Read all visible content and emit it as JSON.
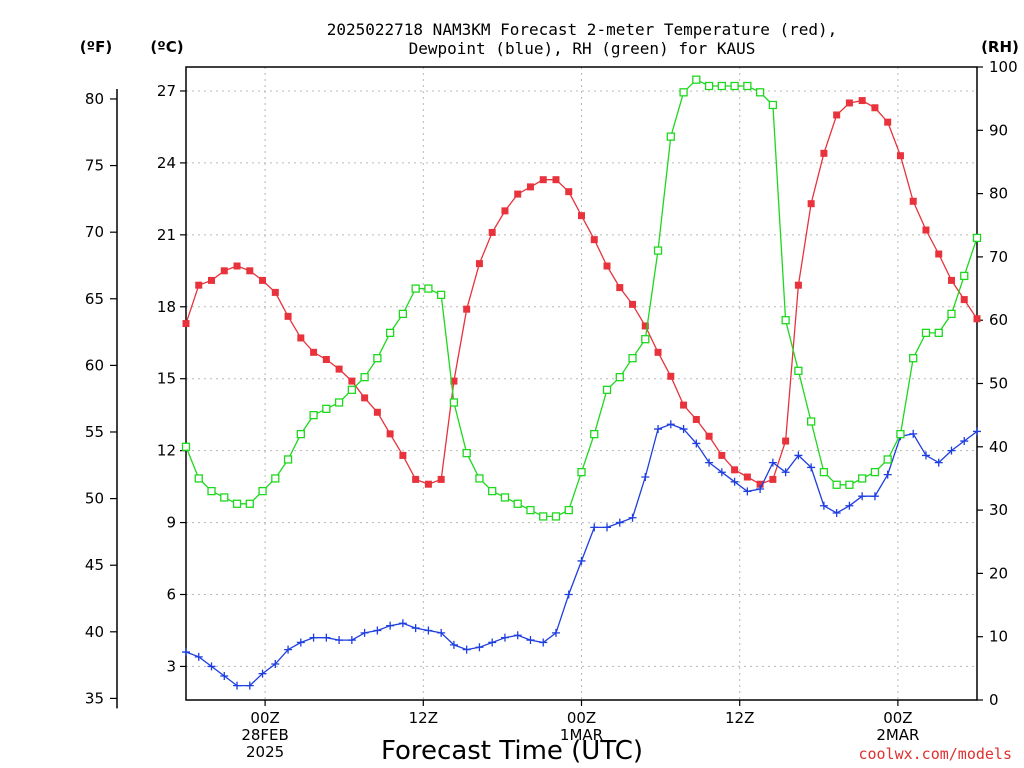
{
  "chart_data": {
    "type": "line",
    "title_line1": "2025022718 NAM3KM Forecast 2-meter Temperature (red),",
    "title_line2": "Dewpoint (blue), RH (green) for KAUS",
    "xlabel": "Forecast Time (UTC)",
    "credit": "coolwx.com/models",
    "units": {
      "fahrenheit": "(ºF)",
      "celsius": "(ºC)",
      "rh": "(RH)"
    },
    "x_range_hours": [
      0,
      60
    ],
    "celsius_range": [
      1.6,
      28.0
    ],
    "rh_range": [
      0,
      100
    ],
    "celsius_ticks": [
      3,
      6,
      9,
      12,
      15,
      18,
      21,
      24,
      27
    ],
    "fahrenheit_ticks": [
      35,
      40,
      45,
      50,
      55,
      60,
      65,
      70,
      75,
      80
    ],
    "rh_ticks": [
      0,
      10,
      20,
      30,
      40,
      50,
      60,
      70,
      80,
      90,
      100
    ],
    "x_ticks": [
      {
        "hour": 6,
        "lines": [
          "00Z",
          "28FEB",
          "2025"
        ]
      },
      {
        "hour": 18,
        "lines": [
          "12Z"
        ]
      },
      {
        "hour": 30,
        "lines": [
          "00Z",
          "1MAR"
        ]
      },
      {
        "hour": 42,
        "lines": [
          "12Z"
        ]
      },
      {
        "hour": 54,
        "lines": [
          "00Z",
          "2MAR"
        ]
      }
    ],
    "series": [
      {
        "key": "temperature",
        "axis": "celsius",
        "color": "#e8323c",
        "marker": "filled-square",
        "values": [
          17.3,
          18.9,
          19.1,
          19.5,
          19.7,
          19.5,
          19.1,
          18.6,
          17.6,
          16.7,
          16.1,
          15.8,
          15.4,
          14.9,
          14.2,
          13.6,
          12.7,
          11.8,
          10.8,
          10.6,
          10.8,
          14.9,
          17.9,
          19.8,
          21.1,
          22.0,
          22.7,
          23.0,
          23.3,
          23.3,
          22.8,
          21.8,
          20.8,
          19.7,
          18.8,
          18.1,
          17.2,
          16.1,
          15.1,
          13.9,
          13.3,
          12.6,
          11.8,
          11.2,
          10.9,
          10.6,
          10.8,
          12.4,
          18.9,
          22.3,
          24.4,
          26.0,
          26.5,
          26.6,
          26.3,
          25.7,
          24.3,
          22.4,
          21.2,
          20.2,
          19.1,
          18.3,
          17.5
        ]
      },
      {
        "key": "dewpoint",
        "axis": "celsius",
        "color": "#1e3ee0",
        "marker": "plus",
        "values": [
          3.6,
          3.4,
          3.0,
          2.6,
          2.2,
          2.2,
          2.7,
          3.1,
          3.7,
          4.0,
          4.2,
          4.2,
          4.1,
          4.1,
          4.4,
          4.5,
          4.7,
          4.8,
          4.6,
          4.5,
          4.4,
          3.9,
          3.7,
          3.8,
          4.0,
          4.2,
          4.3,
          4.1,
          4.0,
          4.4,
          6.0,
          7.4,
          8.8,
          8.8,
          9.0,
          9.2,
          10.9,
          12.9,
          13.1,
          12.9,
          12.3,
          11.5,
          11.1,
          10.7,
          10.3,
          10.4,
          11.5,
          11.1,
          11.8,
          11.3,
          9.7,
          9.4,
          9.7,
          10.1,
          10.1,
          11.0,
          12.6,
          12.7,
          11.8,
          11.5,
          12.0,
          12.4,
          12.8
        ]
      },
      {
        "key": "rh",
        "axis": "rh",
        "color": "#1ed81e",
        "marker": "open-square",
        "values": [
          40,
          35,
          33,
          32,
          31,
          31,
          33,
          35,
          38,
          42,
          45,
          46,
          47,
          49,
          51,
          54,
          58,
          61,
          65,
          65,
          64,
          47,
          39,
          35,
          33,
          32,
          31,
          30,
          29,
          29,
          30,
          36,
          42,
          49,
          51,
          54,
          57,
          71,
          89,
          96,
          98,
          97,
          97,
          97,
          97,
          96,
          94,
          60,
          52,
          44,
          36,
          34,
          34,
          35,
          36,
          38,
          42,
          54,
          58,
          58,
          61,
          67,
          73
        ]
      }
    ]
  }
}
